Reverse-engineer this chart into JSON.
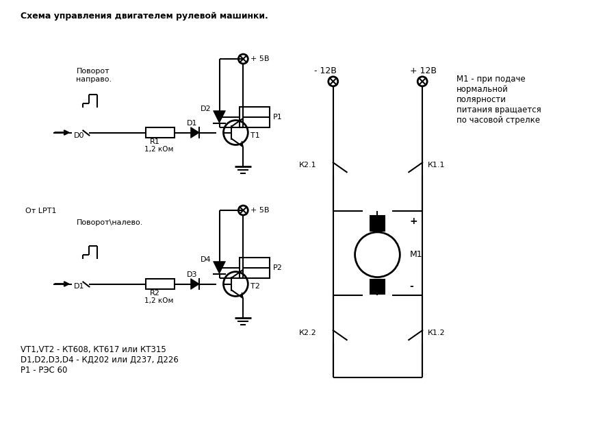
{
  "title": "Схема управления двигателем рулевой машинки.",
  "bg_color": "#ffffff",
  "fg_color": "#000000",
  "note_text": "М1 - при подаче\nнормальной\nполярности\nпитания вращается\nпо часовой стрелке",
  "legend_text": "VT1,VT2 - КТ608, КТ617 или КТ315\nD1,D2,D3,D4 - КД202 или Д237, Д226\nР1 - РЭС 60",
  "lw": 1.5,
  "lw2": 2.0
}
